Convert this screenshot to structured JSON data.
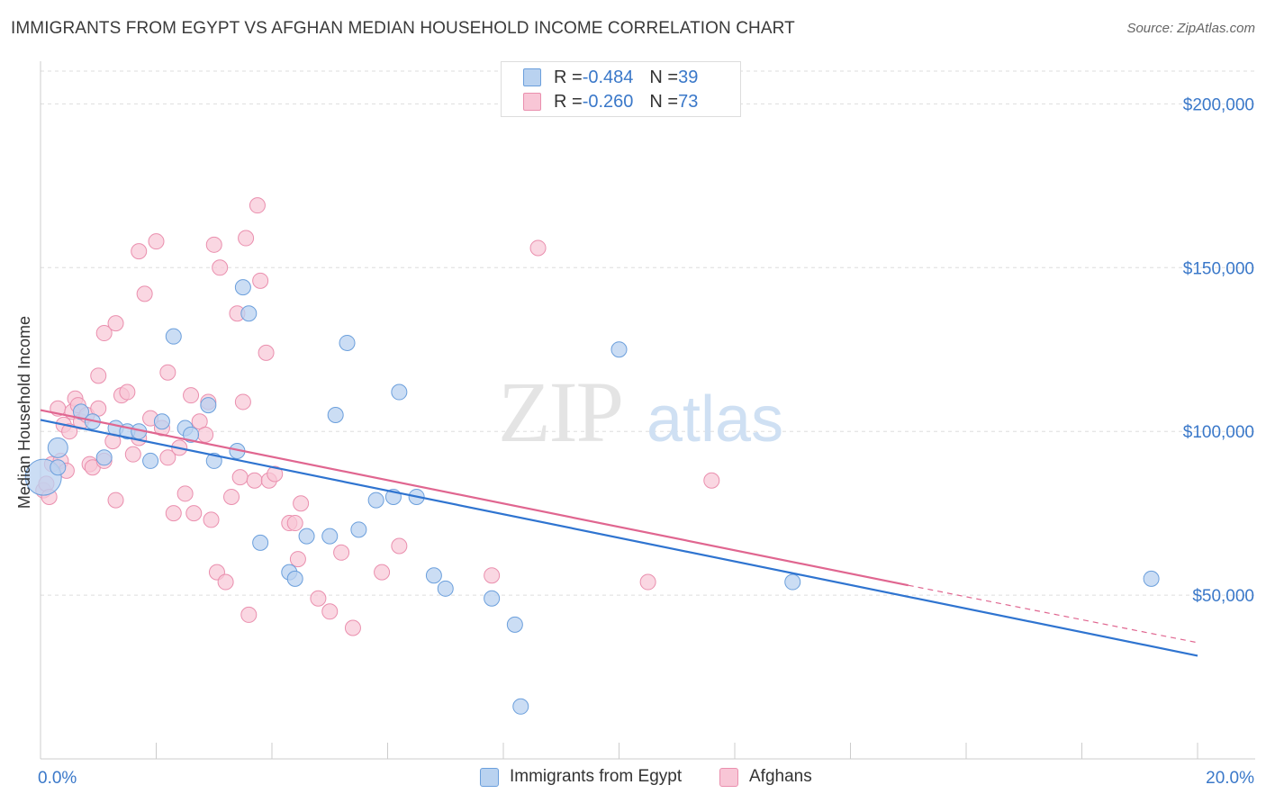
{
  "title": "IMMIGRANTS FROM EGYPT VS AFGHAN MEDIAN HOUSEHOLD INCOME CORRELATION CHART",
  "source": "Source: ZipAtlas.com",
  "watermark": {
    "zip": "ZIP",
    "atlas": "atlas"
  },
  "legend_top": [
    {
      "r_label": "R = ",
      "r_value": "-0.484",
      "n_label": "N = ",
      "n_value": "39"
    },
    {
      "r_label": "R = ",
      "r_value": "-0.260",
      "n_label": "N = ",
      "n_value": "73"
    }
  ],
  "legend_bottom": [
    "Immigrants from Egypt",
    "Afghans"
  ],
  "colors": {
    "egypt_fill": "#b9d2f0",
    "egypt_stroke": "#6b9fdc",
    "egypt_line": "#2f74d0",
    "afghan_fill": "#f8c6d6",
    "afghan_stroke": "#ea8fae",
    "afghan_line": "#e06690",
    "tick_text": "#3a78c9",
    "grid": "#dddddd"
  },
  "chart_data": {
    "type": "scatter",
    "xlabel": "",
    "ylabel": "Median Household Income",
    "xlim": [
      0,
      20
    ],
    "ylim": [
      0,
      210000
    ],
    "x_ticks": [
      {
        "value": 0,
        "label": "0.0%"
      },
      {
        "value": 20,
        "label": "20.0%"
      }
    ],
    "y_ticks": [
      {
        "value": 50000,
        "label": "$50,000"
      },
      {
        "value": 100000,
        "label": "$100,000"
      },
      {
        "value": 150000,
        "label": "$150,000"
      },
      {
        "value": 200000,
        "label": "$200,000"
      }
    ],
    "grid": "horizontal dashed",
    "series": [
      {
        "name": "Immigrants from Egypt",
        "points": [
          [
            0.05,
            86000
          ],
          [
            0.3,
            95000
          ],
          [
            0.3,
            89000
          ],
          [
            0.7,
            106000
          ],
          [
            0.9,
            103000
          ],
          [
            1.1,
            92000
          ],
          [
            1.3,
            101000
          ],
          [
            1.5,
            100000
          ],
          [
            1.7,
            100000
          ],
          [
            1.9,
            91000
          ],
          [
            2.1,
            103000
          ],
          [
            2.3,
            129000
          ],
          [
            2.5,
            101000
          ],
          [
            2.6,
            99000
          ],
          [
            2.9,
            108000
          ],
          [
            3.0,
            91000
          ],
          [
            3.4,
            94000
          ],
          [
            3.5,
            144000
          ],
          [
            3.6,
            136000
          ],
          [
            3.8,
            66000
          ],
          [
            4.3,
            57000
          ],
          [
            4.4,
            55000
          ],
          [
            4.6,
            68000
          ],
          [
            5.0,
            68000
          ],
          [
            5.1,
            105000
          ],
          [
            5.3,
            127000
          ],
          [
            5.5,
            70000
          ],
          [
            5.8,
            79000
          ],
          [
            6.1,
            80000
          ],
          [
            6.2,
            112000
          ],
          [
            6.5,
            80000
          ],
          [
            6.8,
            56000
          ],
          [
            7.0,
            52000
          ],
          [
            7.8,
            49000
          ],
          [
            8.2,
            41000
          ],
          [
            8.3,
            16000
          ],
          [
            10.0,
            125000
          ],
          [
            13.0,
            54000
          ],
          [
            19.2,
            55000
          ]
        ]
      },
      {
        "name": "Afghans",
        "points": [
          [
            0.05,
            82000
          ],
          [
            0.1,
            84000
          ],
          [
            0.2,
            90000
          ],
          [
            0.3,
            107000
          ],
          [
            0.35,
            91000
          ],
          [
            0.4,
            102000
          ],
          [
            0.5,
            100000
          ],
          [
            0.55,
            106000
          ],
          [
            0.6,
            110000
          ],
          [
            0.65,
            108000
          ],
          [
            0.7,
            103000
          ],
          [
            0.8,
            105000
          ],
          [
            0.85,
            90000
          ],
          [
            0.9,
            89000
          ],
          [
            1.0,
            107000
          ],
          [
            1.1,
            91000
          ],
          [
            1.0,
            117000
          ],
          [
            1.1,
            130000
          ],
          [
            1.25,
            97000
          ],
          [
            1.3,
            133000
          ],
          [
            1.3,
            79000
          ],
          [
            1.4,
            111000
          ],
          [
            1.5,
            112000
          ],
          [
            1.6,
            93000
          ],
          [
            1.7,
            98000
          ],
          [
            1.7,
            155000
          ],
          [
            1.8,
            142000
          ],
          [
            1.9,
            104000
          ],
          [
            2.0,
            158000
          ],
          [
            2.1,
            101000
          ],
          [
            2.2,
            118000
          ],
          [
            2.2,
            92000
          ],
          [
            2.3,
            75000
          ],
          [
            2.4,
            95000
          ],
          [
            2.5,
            81000
          ],
          [
            2.6,
            111000
          ],
          [
            2.65,
            75000
          ],
          [
            2.75,
            103000
          ],
          [
            2.85,
            99000
          ],
          [
            2.9,
            109000
          ],
          [
            2.95,
            73000
          ],
          [
            3.0,
            157000
          ],
          [
            3.05,
            57000
          ],
          [
            3.1,
            150000
          ],
          [
            3.2,
            54000
          ],
          [
            3.3,
            80000
          ],
          [
            3.4,
            136000
          ],
          [
            3.45,
            86000
          ],
          [
            3.5,
            109000
          ],
          [
            3.55,
            159000
          ],
          [
            3.6,
            44000
          ],
          [
            3.7,
            85000
          ],
          [
            3.75,
            169000
          ],
          [
            3.8,
            146000
          ],
          [
            3.9,
            124000
          ],
          [
            3.95,
            85000
          ],
          [
            4.05,
            87000
          ],
          [
            4.3,
            72000
          ],
          [
            4.4,
            72000
          ],
          [
            4.45,
            61000
          ],
          [
            4.5,
            78000
          ],
          [
            4.8,
            49000
          ],
          [
            5.0,
            45000
          ],
          [
            5.2,
            63000
          ],
          [
            5.4,
            40000
          ],
          [
            5.9,
            57000
          ],
          [
            6.2,
            65000
          ],
          [
            7.8,
            56000
          ],
          [
            8.6,
            156000
          ],
          [
            10.5,
            54000
          ],
          [
            11.6,
            85000
          ],
          [
            0.15,
            80000
          ],
          [
            0.45,
            88000
          ]
        ]
      }
    ],
    "trendlines": [
      {
        "series": "Immigrants from Egypt",
        "x": [
          0,
          20
        ],
        "y": [
          103500,
          31500
        ]
      },
      {
        "series": "Afghans",
        "x": [
          0,
          15
        ],
        "y": [
          106500,
          53000
        ],
        "dashed_to": [
          20,
          35500
        ]
      }
    ]
  }
}
